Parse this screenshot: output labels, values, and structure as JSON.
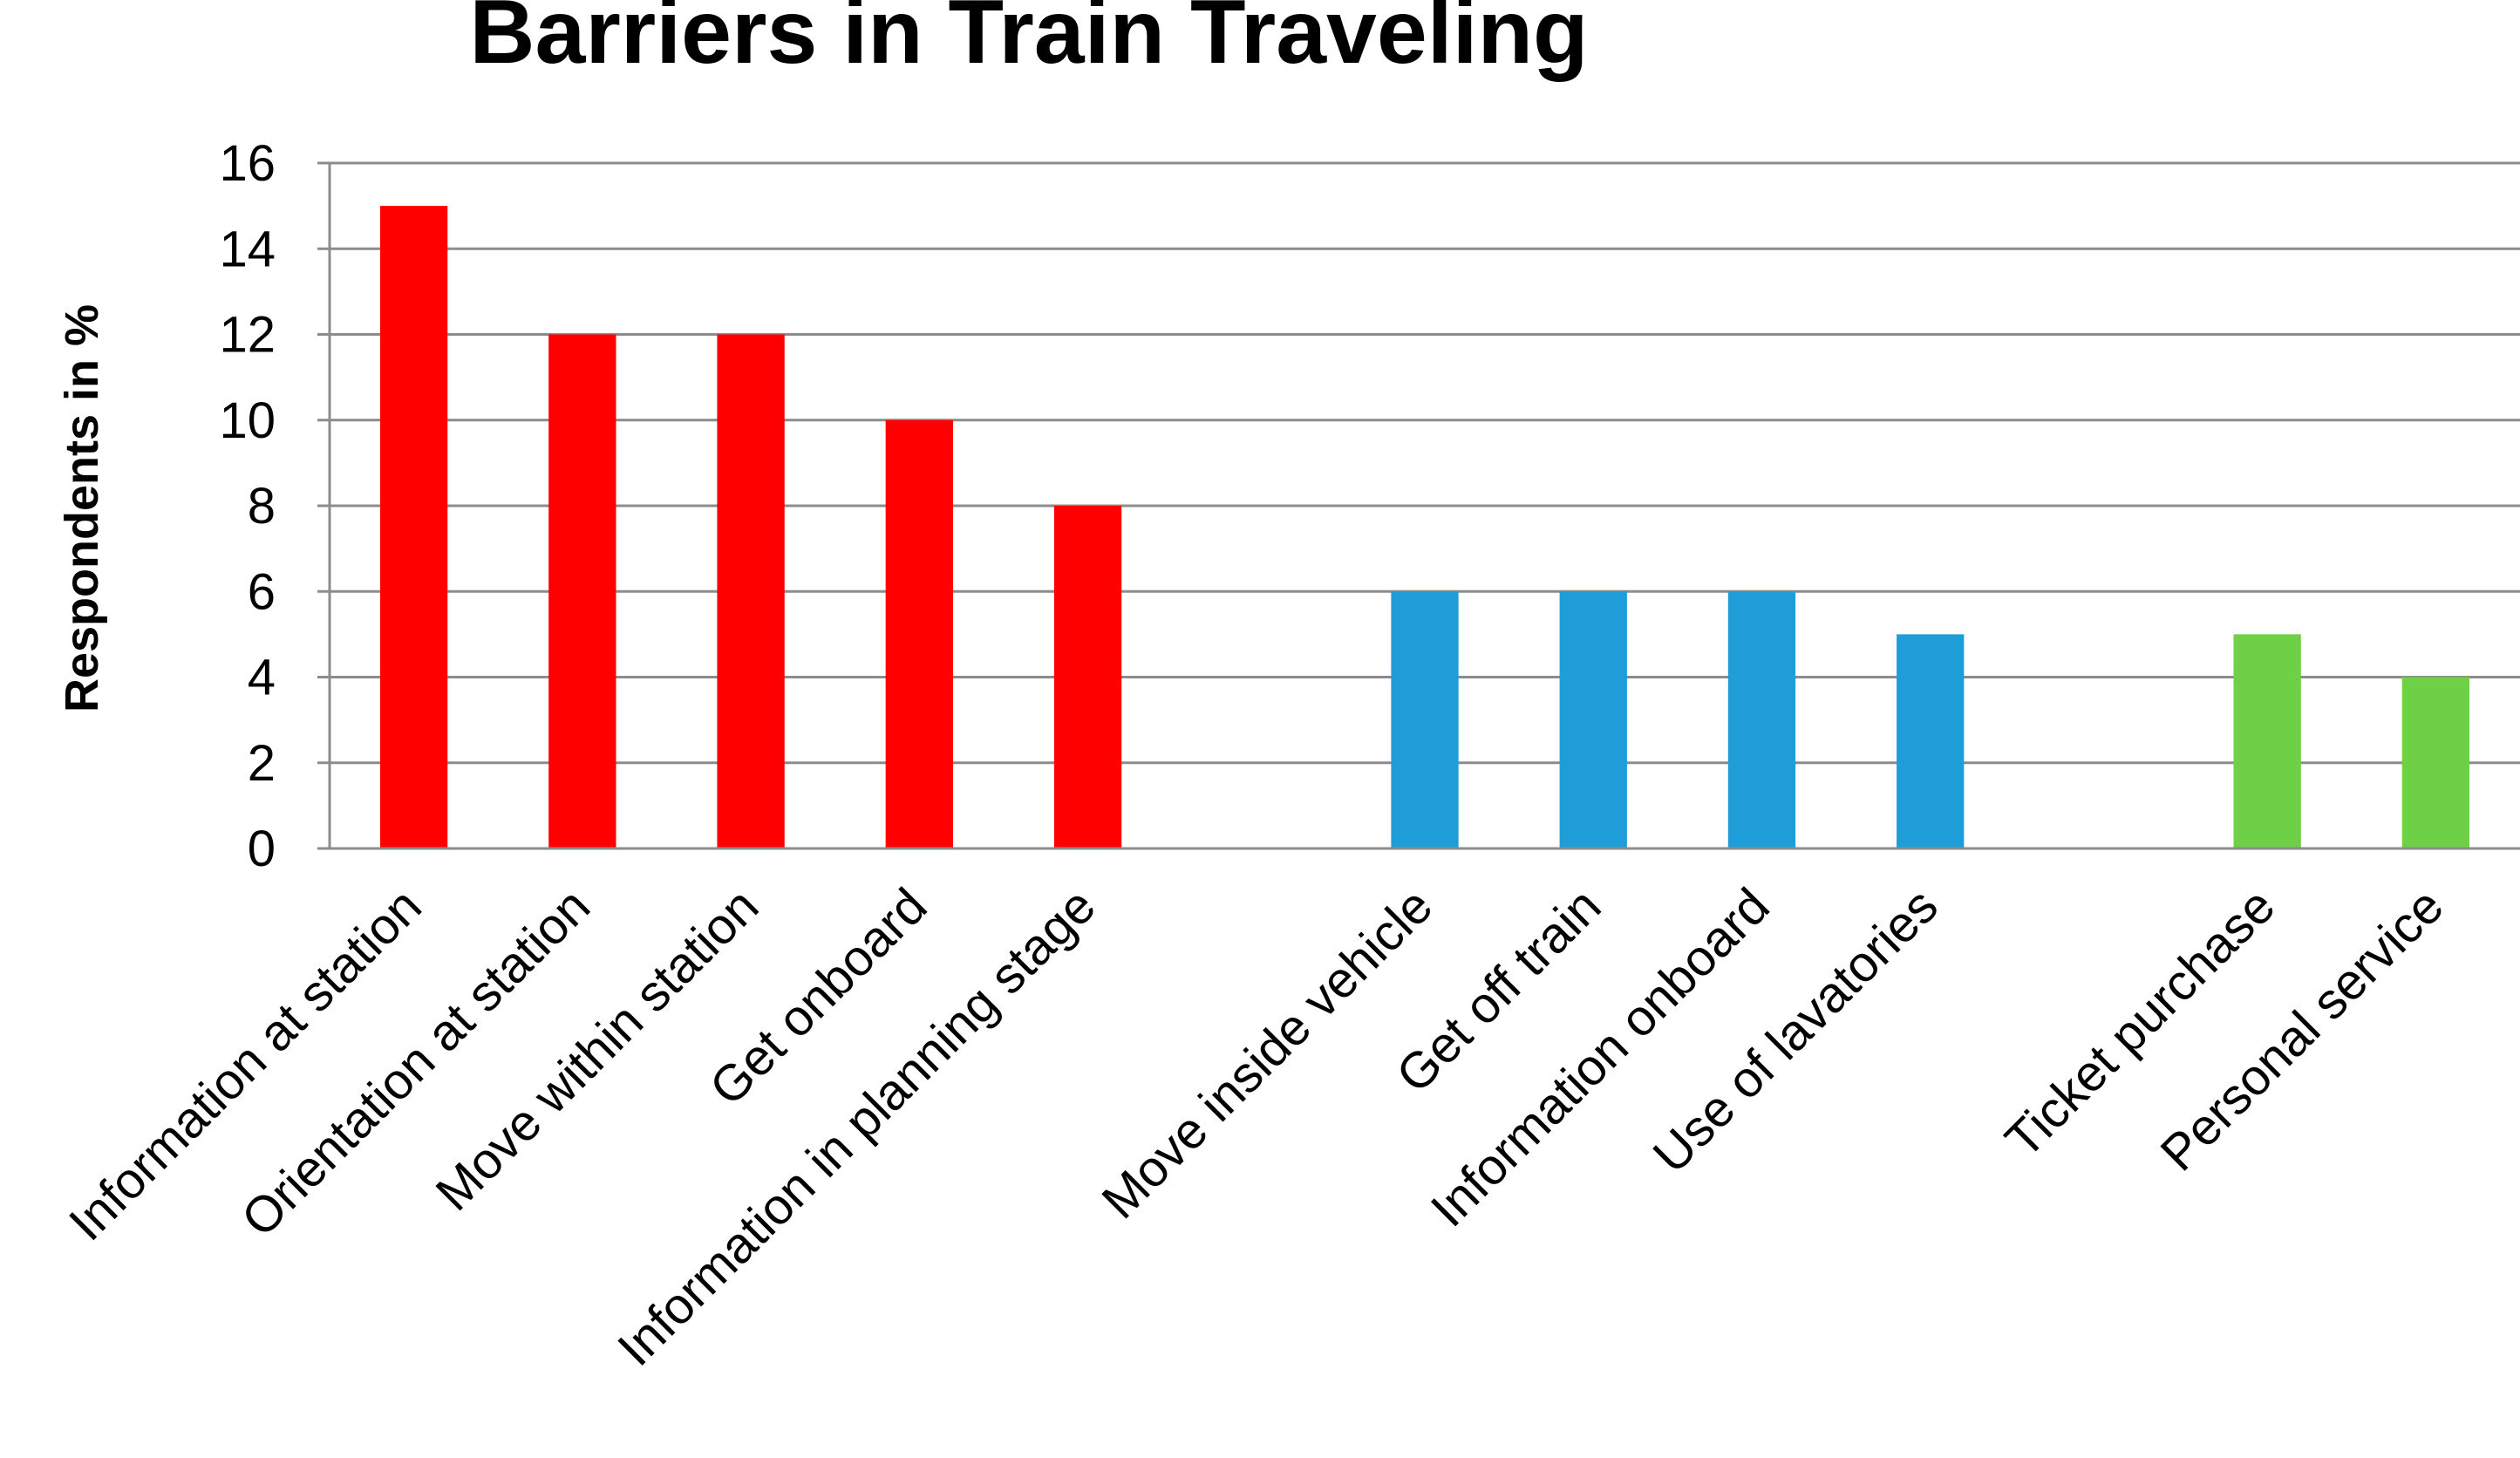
{
  "chart_data": {
    "type": "bar",
    "title": "Barriers in Train Traveling",
    "xlabel": "",
    "ylabel": "Respondents in %",
    "ylim": [
      0,
      16
    ],
    "yticks": [
      0,
      2,
      4,
      6,
      8,
      10,
      12,
      14,
      16
    ],
    "grid": true,
    "legend": "none",
    "categories": [
      "Information at station",
      "Orientation at station",
      "Move within station",
      "Get onboard",
      "Information in planning stage",
      "",
      "Move inside vehicle",
      "Get off train",
      "Information onboard",
      "Use of lavatories",
      "",
      "Ticket purchase",
      "Personal service"
    ],
    "values": [
      15,
      12,
      12,
      10,
      8,
      null,
      6,
      6,
      6,
      5,
      null,
      5,
      4
    ],
    "bar_colors": [
      "#ff0000",
      "#ff0000",
      "#ff0000",
      "#ff0000",
      "#ff0000",
      "",
      "#1f9dd9",
      "#1f9dd9",
      "#1f9dd9",
      "#1f9dd9",
      "",
      "#6dd045",
      "#6dd045"
    ]
  },
  "colors": {
    "gridline": "#8c8c8c",
    "axis": "#8c8c8c",
    "text": "#000000"
  }
}
